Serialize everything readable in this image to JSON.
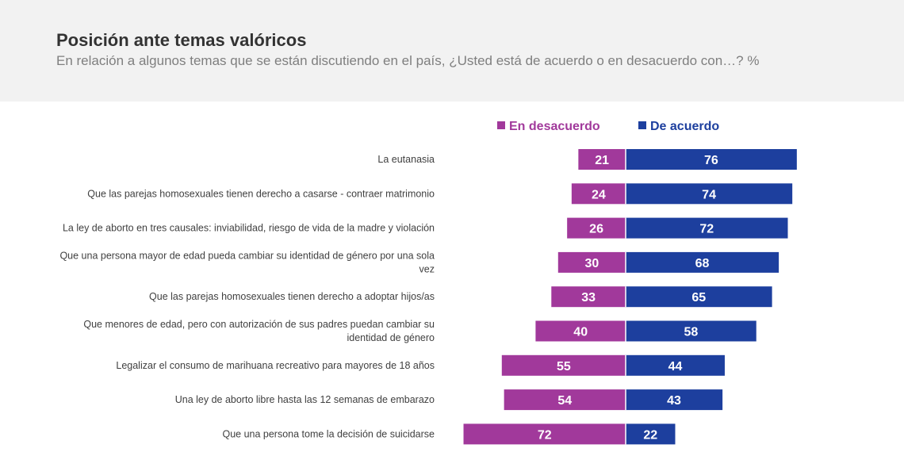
{
  "header": {
    "title": "Posición ante temas valóricos",
    "subtitle": "En relación a algunos temas que se están discutiendo en el país, ¿Usted está de acuerdo o en desacuerdo con…? %"
  },
  "colors": {
    "desacuerdo": "#a1399b",
    "acuerdo": "#1d3f9e"
  },
  "chart_data": {
    "type": "bar",
    "categories": [
      "La eutanasia",
      "Que las parejas homosexuales tienen derecho a casarse - contraer matrimonio",
      "La ley de aborto en tres causales: inviabilidad, riesgo de vida de la madre y violación",
      "Que una persona mayor de edad pueda cambiar su identidad de género por una sola vez",
      "Que las parejas homosexuales tienen derecho a adoptar hijos/as",
      "Que menores de edad, pero con autorización de sus padres puedan cambiar su identidad de género",
      "Legalizar el consumo de marihuana recreativo para mayores de 18 años",
      "Una ley de aborto libre hasta las 12 semanas de embarazo",
      "Que una persona tome la decisión de suicidarse"
    ],
    "series": [
      {
        "name": "En desacuerdo",
        "values": [
          21,
          24,
          26,
          30,
          33,
          40,
          55,
          54,
          72
        ]
      },
      {
        "name": "De acuerdo",
        "values": [
          76,
          74,
          72,
          68,
          65,
          58,
          44,
          43,
          22
        ]
      }
    ],
    "orientation": "diverging-horizontal",
    "legend": "top"
  }
}
